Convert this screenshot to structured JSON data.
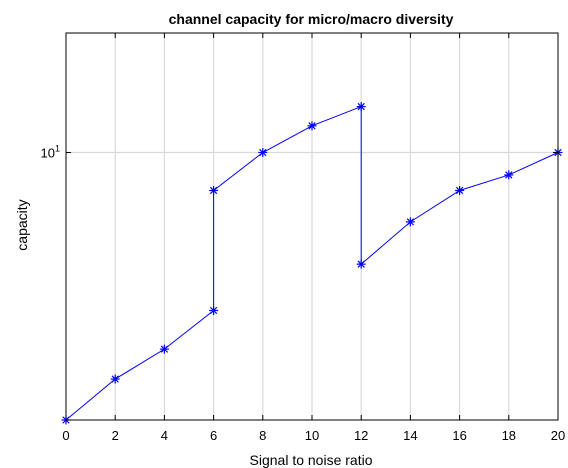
{
  "chart_data": {
    "type": "line",
    "title": "channel capacity for micro/macro diversity",
    "xlabel": "Signal to noise ratio",
    "ylabel": "capacity",
    "xlim": [
      0,
      20
    ],
    "ylim": [
      1.9,
      21
    ],
    "y_scale": "log",
    "grid": true,
    "x_ticks": [
      0,
      2,
      4,
      6,
      8,
      10,
      12,
      14,
      16,
      18,
      20
    ],
    "y_ticks": [
      {
        "value": 10,
        "base": "10",
        "exponent": "1"
      }
    ],
    "series": [
      {
        "color": "#0000ff",
        "marker": "asterisk",
        "x": [
          0,
          2,
          4,
          6,
          6,
          8,
          10,
          12,
          12,
          14,
          16,
          18,
          20
        ],
        "y": [
          1.9,
          2.45,
          2.95,
          3.75,
          7.9,
          10.0,
          11.8,
          13.3,
          5.0,
          6.5,
          7.9,
          8.7,
          10.0
        ]
      }
    ]
  }
}
